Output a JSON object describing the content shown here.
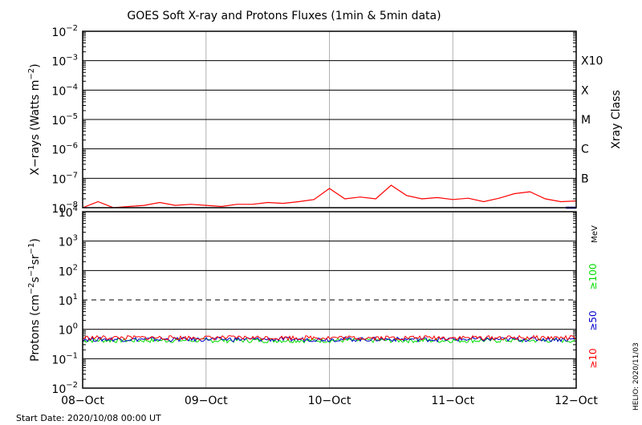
{
  "chart_data": [
    {
      "type": "line",
      "title": "GOES Soft X-ray and Protons Fluxes   (1min & 5min data)",
      "ylabel": {
        "pre": "X−rays (Watts m",
        "sup": "−2",
        "post": ")"
      },
      "yscale": "log",
      "ylim": [
        1e-08,
        0.01
      ],
      "y_ticks": [
        {
          "base": "10",
          "exp": "−2"
        },
        {
          "base": "10",
          "exp": "−3"
        },
        {
          "base": "10",
          "exp": "−4"
        },
        {
          "base": "10",
          "exp": "−5"
        },
        {
          "base": "10",
          "exp": "−6"
        },
        {
          "base": "10",
          "exp": "−7"
        },
        {
          "base": "10",
          "exp": "−8"
        }
      ],
      "right_axis_label": "Xray Class",
      "class_labels": [
        "X10",
        "X",
        "M",
        "C",
        "B"
      ],
      "grid": true,
      "series": [
        {
          "color": "#ff0000",
          "x": [
            "2020-10-08 00:00",
            "2020-10-08 03:00",
            "2020-10-08 06:00",
            "2020-10-08 09:00",
            "2020-10-08 12:00",
            "2020-10-08 15:00",
            "2020-10-08 18:00",
            "2020-10-08 21:00",
            "2020-10-09 00:00",
            "2020-10-09 03:00",
            "2020-10-09 06:00",
            "2020-10-09 09:00",
            "2020-10-09 12:00",
            "2020-10-09 15:00",
            "2020-10-09 18:00",
            "2020-10-09 21:00",
            "2020-10-10 00:00",
            "2020-10-10 03:00",
            "2020-10-10 06:00",
            "2020-10-10 09:00",
            "2020-10-10 12:00",
            "2020-10-10 15:00",
            "2020-10-10 18:00",
            "2020-10-10 21:00",
            "2020-10-11 00:00",
            "2020-10-11 03:00",
            "2020-10-11 06:00",
            "2020-10-11 09:00",
            "2020-10-11 12:00",
            "2020-10-11 15:00",
            "2020-10-11 18:00",
            "2020-10-11 21:00",
            "2020-10-12 00:00"
          ],
          "y": [
            1e-08,
            1.6e-08,
            1e-08,
            1.1e-08,
            1.2e-08,
            1.5e-08,
            1.2e-08,
            1.3e-08,
            1.2e-08,
            1.1e-08,
            1.3e-08,
            1.3e-08,
            1.5e-08,
            1.4e-08,
            1.6e-08,
            1.9e-08,
            4.5e-08,
            2e-08,
            2.3e-08,
            2e-08,
            5.8e-08,
            2.6e-08,
            2e-08,
            2.2e-08,
            1.9e-08,
            2.1e-08,
            1.6e-08,
            2.1e-08,
            3e-08,
            3.5e-08,
            2e-08,
            1.6e-08,
            1.7e-08
          ]
        },
        {
          "color": "#0000cc",
          "x": [
            "2020-10-11 22:00",
            "2020-10-12 00:00"
          ],
          "y": [
            1e-08,
            1e-08
          ]
        }
      ]
    },
    {
      "type": "line",
      "ylabel": {
        "pre": "Protons (cm",
        "sup1": "−2",
        "mid1": "s",
        "sup2": "−1",
        "mid2": "sr",
        "sup3": "−1",
        "post": ")"
      },
      "yscale": "log",
      "ylim": [
        0.01,
        10000
      ],
      "y_ticks": [
        {
          "base": "10",
          "exp": "4"
        },
        {
          "base": "10",
          "exp": "3"
        },
        {
          "base": "10",
          "exp": "2"
        },
        {
          "base": "10",
          "exp": "1"
        },
        {
          "base": "10",
          "exp": "0"
        },
        {
          "base": "10",
          "exp": "−1"
        },
        {
          "base": "10",
          "exp": "−2"
        }
      ],
      "threshold": 10,
      "unit_label": "MeV",
      "grid": true,
      "series": [
        {
          "name": "≥100",
          "color": "#00dd00",
          "level": 0.42
        },
        {
          "name": "≥50",
          "color": "#0000cc",
          "level": 0.46
        },
        {
          "name": "≥10",
          "color": "#ff0000",
          "level": 0.52
        }
      ]
    }
  ],
  "x_ticks": [
    "08−Oct",
    "09−Oct",
    "10−Oct",
    "11−Oct",
    "12−Oct"
  ],
  "start_date": "Start Date: 2020/10/08 00:00 UT",
  "helio_stamp": "HELIO: 2020/11/03"
}
